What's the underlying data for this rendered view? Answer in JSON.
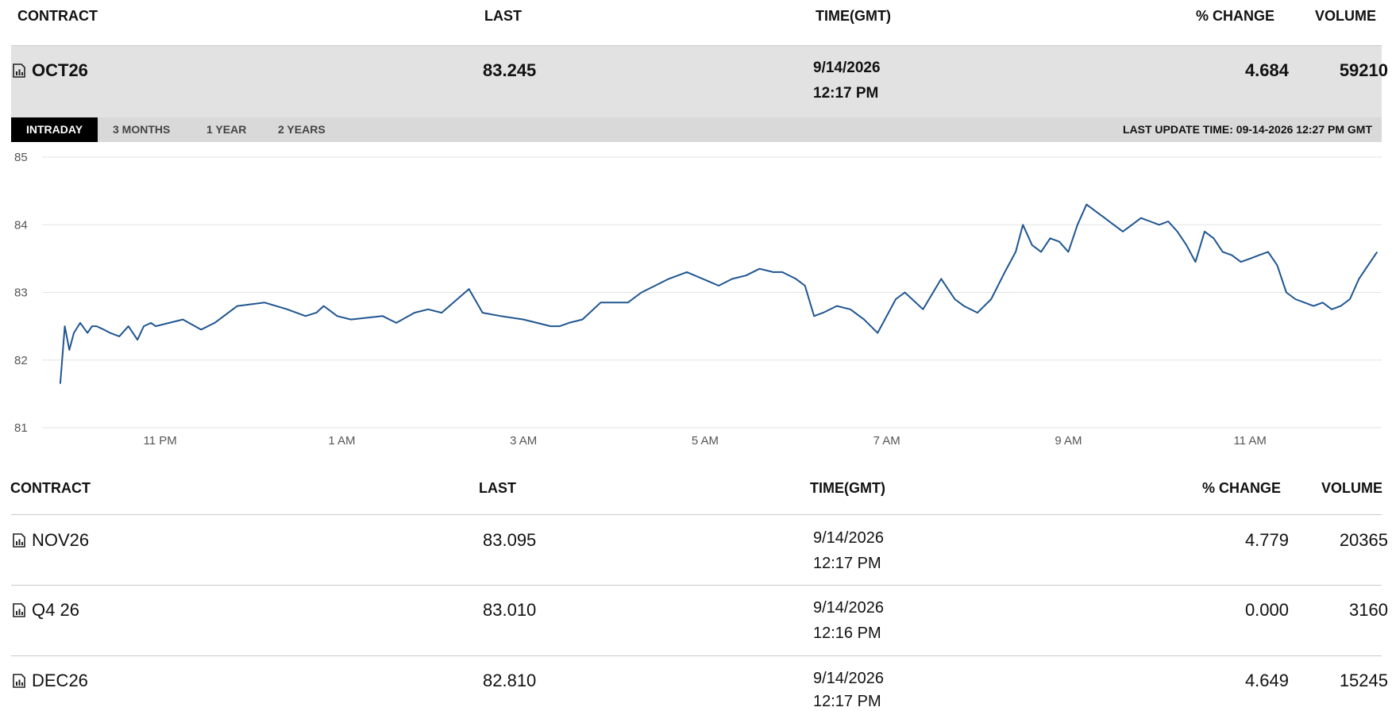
{
  "header": {
    "contract": "CONTRACT",
    "last": "LAST",
    "time": "TIME(GMT)",
    "pct_change": "% CHANGE",
    "volume": "VOLUME"
  },
  "main_row": {
    "contract": "OCT26",
    "last": "83.245",
    "date": "9/14/2026",
    "time": "12:17 PM",
    "pct_change": "4.684",
    "volume": "59210",
    "icon": "chart-document-icon"
  },
  "tabs": [
    {
      "label": "INTRADAY",
      "active": true
    },
    {
      "label": "3 MONTHS",
      "active": false
    },
    {
      "label": "1 YEAR",
      "active": false
    },
    {
      "label": "2 YEARS",
      "active": false
    }
  ],
  "last_update": "LAST UPDATE TIME: 09-14-2026 12:27 PM GMT",
  "chart_data": {
    "type": "line",
    "ylim": [
      81,
      85
    ],
    "yticks": [
      "85",
      "84",
      "83",
      "82",
      "81"
    ],
    "xticks": [
      "11 PM",
      "1 AM",
      "3 AM",
      "5 AM",
      "7 AM",
      "9 AM",
      "11 AM"
    ],
    "xlim_hours": [
      21.7,
      12.45
    ],
    "line_color": "#1f5590",
    "grid": true,
    "series": [
      {
        "x": [
          21.9,
          21.95,
          22.0,
          22.05,
          22.12,
          22.2,
          22.25,
          22.3,
          22.38,
          22.45,
          22.55,
          22.65,
          22.75,
          22.82,
          22.9,
          22.95,
          23.1,
          23.25,
          23.45,
          23.6,
          23.85,
          24.15,
          24.4,
          24.6,
          24.72,
          24.8,
          24.95,
          25.1,
          25.45,
          25.6,
          25.8,
          25.95,
          26.1,
          26.4,
          26.55,
          26.75,
          27.0,
          27.15,
          27.3,
          27.4,
          27.5,
          27.65,
          27.85,
          28.05,
          28.15,
          28.3,
          28.45,
          28.6,
          28.8,
          29.15,
          29.3,
          29.45,
          29.6,
          29.75,
          29.85,
          30.0,
          30.1,
          30.2,
          30.3,
          30.45,
          30.6,
          30.75,
          30.9,
          31.1,
          31.2,
          31.4,
          31.6,
          31.75,
          31.85,
          32.0,
          32.15,
          32.3,
          32.42,
          32.5,
          32.6,
          32.7,
          32.8,
          32.9,
          33.0,
          33.1,
          33.2,
          33.3,
          33.4,
          33.5,
          33.6,
          33.7,
          33.8,
          33.9,
          34.0,
          34.1,
          34.2,
          34.3,
          34.4,
          34.5,
          34.6,
          34.7,
          34.8,
          34.9,
          35.0,
          35.1,
          35.2,
          35.3,
          35.4,
          35.5,
          35.6,
          35.7,
          35.8,
          35.9,
          36.0,
          36.1,
          36.2,
          36.3,
          36.4
        ],
        "values": [
          81.65,
          82.5,
          82.15,
          82.4,
          82.55,
          82.4,
          82.5,
          82.5,
          82.45,
          82.4,
          82.35,
          82.5,
          82.3,
          82.5,
          82.55,
          82.5,
          82.55,
          82.6,
          82.45,
          82.55,
          82.8,
          82.85,
          82.75,
          82.65,
          82.7,
          82.8,
          82.65,
          82.6,
          82.65,
          82.55,
          82.7,
          82.75,
          82.7,
          83.05,
          82.7,
          82.65,
          82.6,
          82.55,
          82.5,
          82.5,
          82.55,
          82.6,
          82.85,
          82.85,
          82.85,
          83.0,
          83.1,
          83.2,
          83.3,
          83.1,
          83.2,
          83.25,
          83.35,
          83.3,
          83.3,
          83.2,
          83.1,
          82.65,
          82.7,
          82.8,
          82.75,
          82.6,
          82.4,
          82.9,
          83.0,
          82.75,
          83.2,
          82.9,
          82.8,
          82.7,
          82.9,
          83.3,
          83.6,
          84.0,
          83.7,
          83.6,
          83.8,
          83.75,
          83.6,
          84.0,
          84.3,
          84.2,
          84.1,
          84.0,
          83.9,
          84.0,
          84.1,
          84.05,
          84.0,
          84.05,
          83.9,
          83.7,
          83.45,
          83.9,
          83.8,
          83.6,
          83.55,
          83.45,
          83.5,
          83.55,
          83.6,
          83.4,
          83.0,
          82.9,
          82.85,
          82.8,
          82.85,
          82.75,
          82.8,
          82.9,
          83.2,
          83.4,
          83.6
        ]
      }
    ]
  },
  "columns2": {
    "contract": "CONTRACT",
    "last": "LAST",
    "time": "TIME(GMT)",
    "pct_change": "% CHANGE",
    "volume": "VOLUME"
  },
  "rows": [
    {
      "contract": "NOV26",
      "last": "83.095",
      "date": "9/14/2026",
      "time": "12:17 PM",
      "pct_change": "4.779",
      "volume": "20365"
    },
    {
      "contract": "Q4 26",
      "last": "83.010",
      "date": "9/14/2026",
      "time": "12:16 PM",
      "pct_change": "0.000",
      "volume": "3160"
    },
    {
      "contract": "DEC26",
      "last": "82.810",
      "date": "9/14/2026",
      "time": "12:17 PM",
      "pct_change": "4.649",
      "volume": "15245"
    }
  ]
}
